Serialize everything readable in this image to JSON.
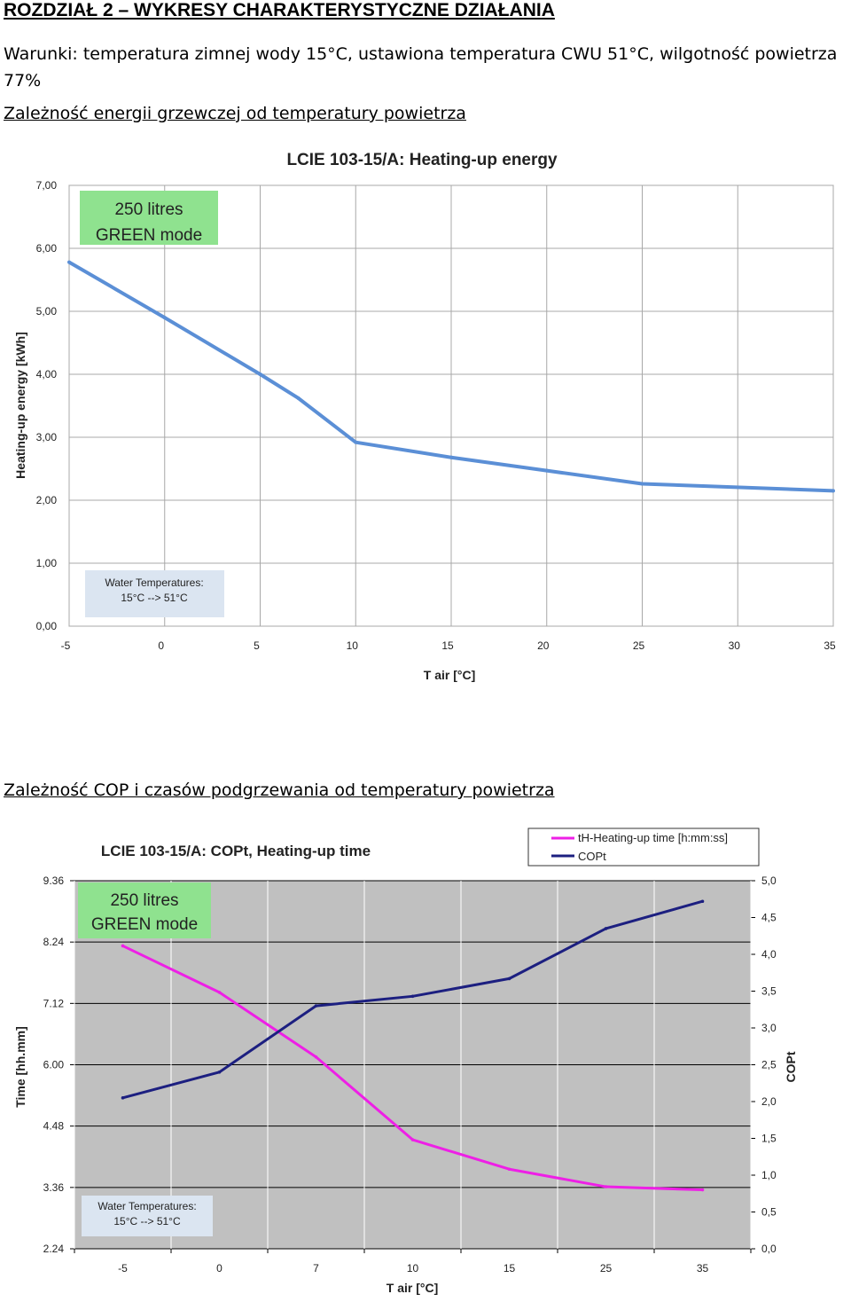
{
  "header": {
    "heading": "ROZDZIAŁ 2 – WYKRESY CHARAKTERYSTYCZNE DZIAŁANIA",
    "conditions": "Warunki: temperatura zimnej wody 15°C,  ustawiona temperatura CWU 51°C, wilgotność powietrza 77%",
    "subtitle1": "Zależność energii grzewczej od temperatury powietrza",
    "subtitle2": "Zależność COP i czasów podgrzewania od temperatury powietrza"
  },
  "colors": {
    "energy_line": "#5b8fd6",
    "heating_time_line": "#ee1fe6",
    "copt_line": "#1c1f80",
    "green_box": "#8fe28f",
    "water_box": "#dbe5f1",
    "plot2_bg": "#c0c0c0"
  },
  "chart_data": [
    {
      "type": "line",
      "title": "LCIE 103-15/A: Heating-up energy",
      "xlabel": "T air [°C]",
      "ylabel": "Heating-up energy [kWh]",
      "xlim": [
        -5,
        35
      ],
      "ylim": [
        0,
        7
      ],
      "x_ticks": [
        "-5",
        "0",
        "5",
        "10",
        "15",
        "20",
        "25",
        "30",
        "35"
      ],
      "y_ticks": [
        "0,00",
        "1,00",
        "2,00",
        "3,00",
        "4,00",
        "5,00",
        "6,00",
        "7,00"
      ],
      "grid": true,
      "series": [
        {
          "x": [
            -5,
            0,
            5,
            7,
            10,
            15,
            20,
            25,
            35
          ],
          "values": [
            5.78,
            4.9,
            4.0,
            3.62,
            2.92,
            2.68,
            2.47,
            2.26,
            2.15
          ]
        }
      ],
      "annotations": {
        "mode_line1": "250 litres",
        "mode_line2": "GREEN mode",
        "water_line1": "Water Temperatures:",
        "water_line2": "15°C --> 51°C"
      }
    },
    {
      "type": "line",
      "title": "LCIE 103-15/A: COPt, Heating-up time",
      "xlabel": "T air [°C]",
      "ylabel": "Time [hh.mm]",
      "y2label": "COPt",
      "categories": [
        "-5",
        "0",
        "7",
        "10",
        "15",
        "25",
        "35"
      ],
      "ylim": [
        2.24,
        9.36
      ],
      "y2lim": [
        0,
        5
      ],
      "y_ticks": [
        "2.24",
        "3.36",
        "4.48",
        "6.00",
        "7.12",
        "8.24",
        "9.36"
      ],
      "y2_ticks": [
        "0,0",
        "0,5",
        "1,0",
        "1,5",
        "2,0",
        "2,5",
        "3,0",
        "3,5",
        "4,0",
        "4,5",
        "5,0"
      ],
      "grid": true,
      "legend_position": "top-right",
      "series": [
        {
          "name": "tH-Heating-up time [h:mm:ss]",
          "axis": "left",
          "values": [
            8.1,
            7.2,
            5.95,
            4.35,
            3.78,
            3.44,
            3.38
          ]
        },
        {
          "name": "COPt",
          "axis": "right",
          "values": [
            2.05,
            2.4,
            3.3,
            3.43,
            3.67,
            4.35,
            4.72
          ]
        }
      ],
      "annotations": {
        "mode_line1": "250 litres",
        "mode_line2": "GREEN mode",
        "water_line1": "Water Temperatures:",
        "water_line2": "15°C --> 51°C"
      }
    }
  ]
}
